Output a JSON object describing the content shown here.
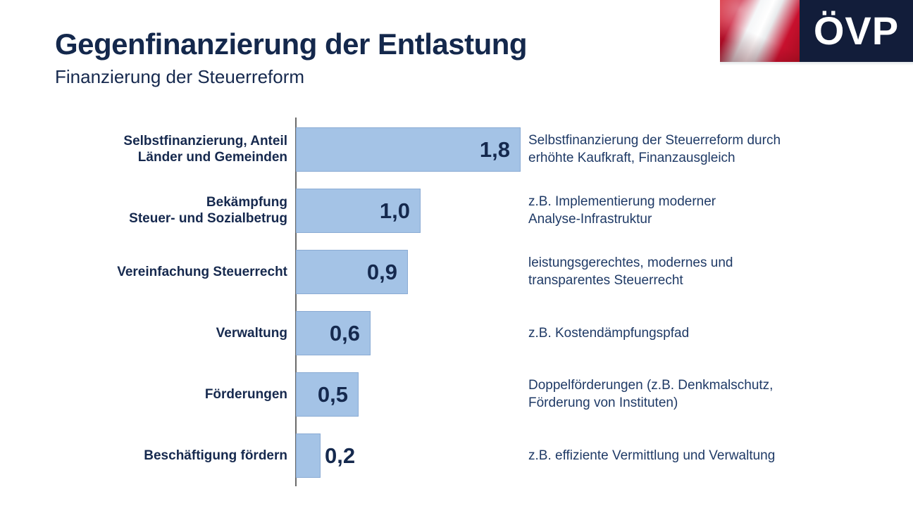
{
  "header": {
    "title": "Gegenfinanzierung der Entlastung",
    "subtitle": "Finanzierung der Steuerreform"
  },
  "logo": {
    "party_name": "ÖVP",
    "flag": "austrian-flag-photo",
    "box_color": "#121d3a"
  },
  "colors": {
    "bar_fill": "#a4c3e6",
    "bar_border": "#8aabd4",
    "heading_navy": "#14284c",
    "text_navy": "#16294e",
    "annotation_navy": "#1f3a66",
    "axis_gray": "#6b6b6b"
  },
  "chart_data": {
    "type": "bar",
    "orientation": "horizontal",
    "title": "Finanzierung der Steuerreform",
    "xlim": [
      0,
      2.0
    ],
    "grid": false,
    "legend": false,
    "categories": [
      "Selbstfinanzierung, Anteil\nLänder und Gemeinden",
      "Bekämpfung\nSteuer- und Sozialbetrug",
      "Vereinfachung Steuerrecht",
      "Verwaltung",
      "Förderungen",
      "Beschäftigung fördern"
    ],
    "values": [
      1.8,
      1.0,
      0.9,
      0.6,
      0.5,
      0.2
    ],
    "value_labels": [
      "1,8",
      "1,0",
      "0,9",
      "0,6",
      "0,5",
      "0,2"
    ],
    "annotations": [
      "Selbstfinanzierung der Steuerreform durch\nerhöhte Kaufkraft, Finanzausgleich",
      "z.B. Implementierung moderner\nAnalyse-Infrastruktur",
      "leistungsgerechtes, modernes und\ntransparentes Steuerrecht",
      "z.B. Kostendämpfungspfad",
      "Doppelförderungen (z.B. Denkmalschutz,\nFörderung von Instituten)",
      "z.B. effiziente Vermittlung und Verwaltung"
    ]
  }
}
